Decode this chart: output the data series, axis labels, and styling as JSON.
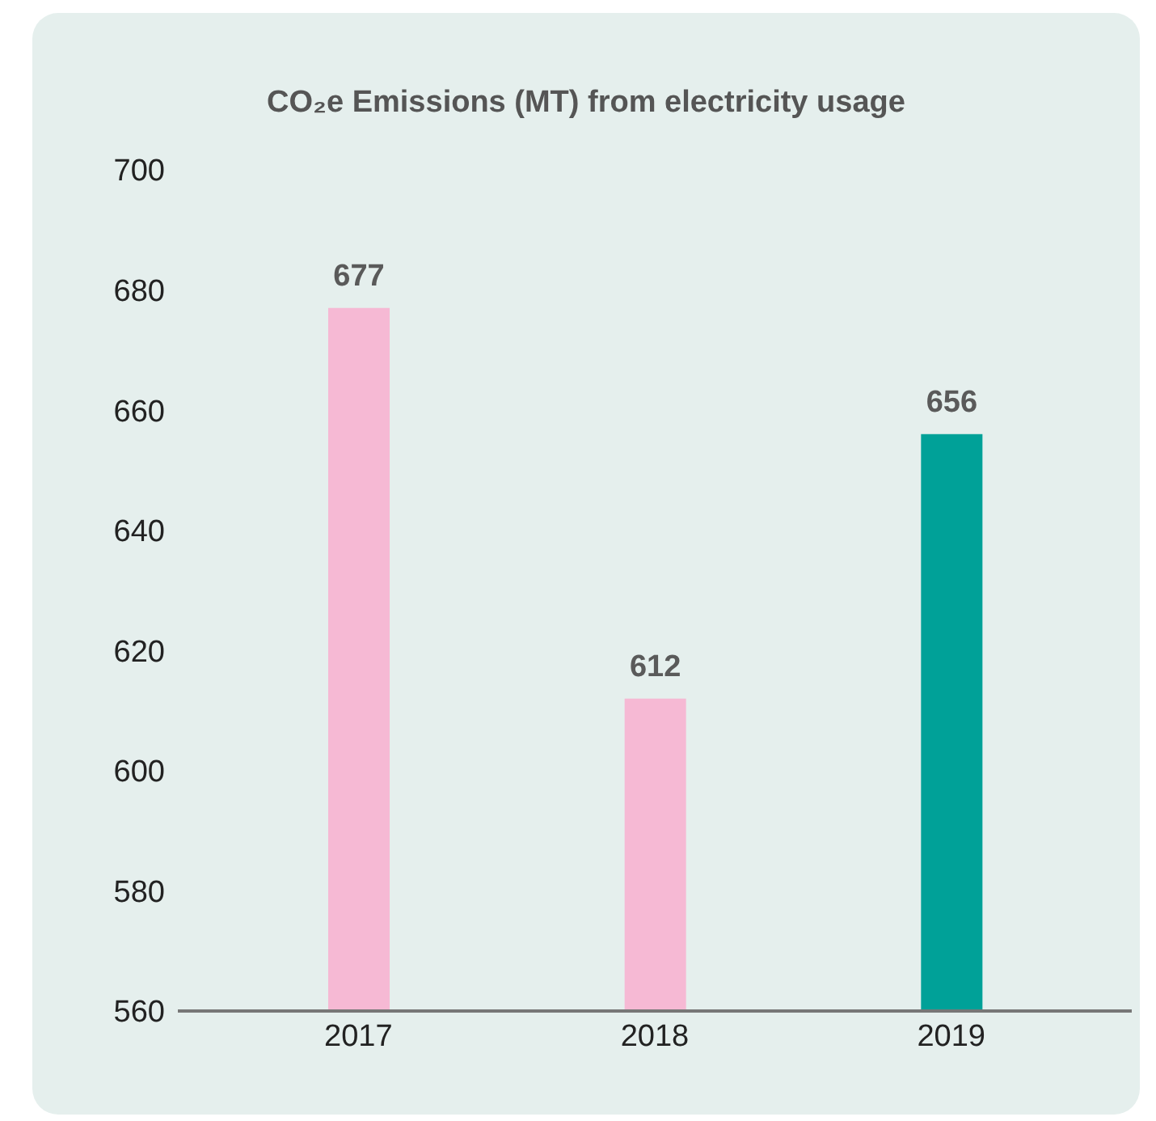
{
  "chart_data": {
    "type": "bar",
    "title": "CO₂e Emissions (MT) from electricity usage",
    "categories": [
      "2017",
      "2018",
      "2019"
    ],
    "values": [
      677,
      612,
      656
    ],
    "colors": [
      "#f6b9d4",
      "#f6b9d4",
      "#00a198"
    ],
    "ylim": [
      560,
      700
    ],
    "yticks": [
      560,
      580,
      600,
      620,
      640,
      660,
      680,
      700
    ],
    "data_labels": true
  }
}
